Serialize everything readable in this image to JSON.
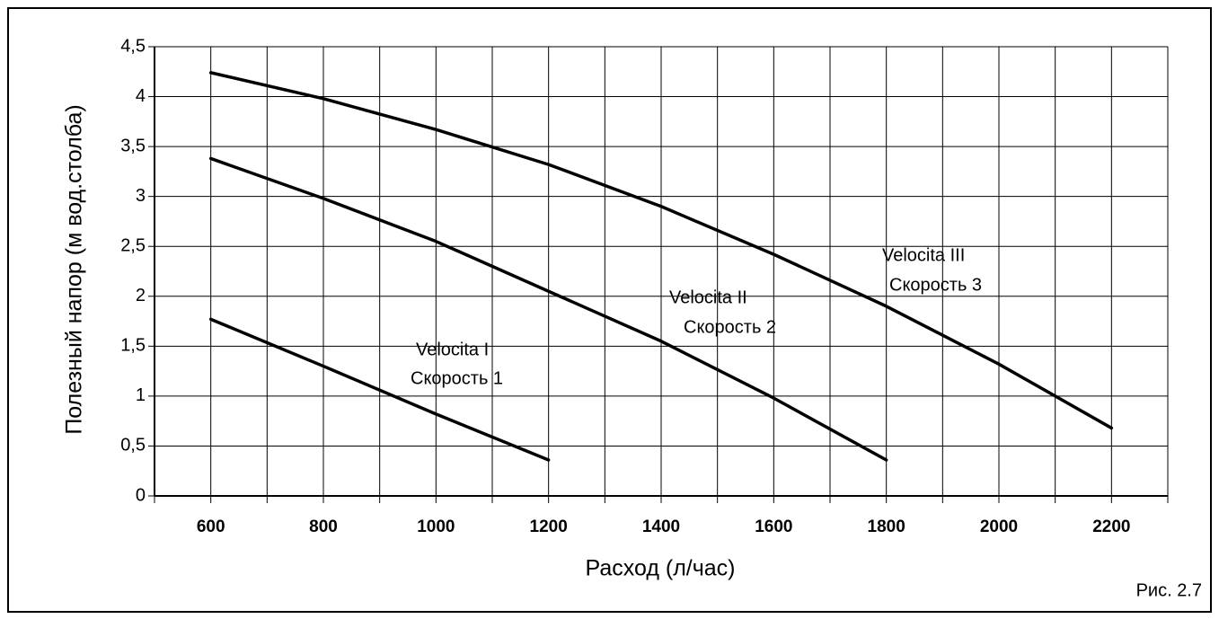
{
  "chart_data": {
    "type": "line",
    "xlabel": "Расход (л/час)",
    "ylabel": "Полезный напор (м вод.столба)",
    "caption": "Рис. 2.7",
    "xlim": [
      500,
      2300
    ],
    "xticks": [
      600,
      800,
      1000,
      1200,
      1400,
      1600,
      1800,
      2000,
      2200
    ],
    "xgrid": [
      500,
      600,
      700,
      800,
      900,
      1000,
      1100,
      1200,
      1300,
      1400,
      1500,
      1600,
      1700,
      1800,
      1900,
      2000,
      2100,
      2200,
      2300
    ],
    "ylim": [
      0,
      4.5
    ],
    "yticks": [
      0,
      {
        "value": 0.5,
        "label": "0,5"
      },
      1,
      {
        "value": 1.5,
        "label": "1,5"
      },
      2,
      {
        "value": 2.5,
        "label": "2,5"
      },
      3,
      {
        "value": 3.5,
        "label": "3,5"
      },
      4,
      {
        "value": 4.5,
        "label": "4,5"
      }
    ],
    "grid": true,
    "series": [
      {
        "color": "#000000",
        "x": [
          600,
          800,
          1000,
          1200
        ],
        "values": [
          1.77,
          1.3,
          0.82,
          0.36
        ]
      },
      {
        "color": "#000000",
        "x": [
          600,
          800,
          1000,
          1200,
          1400,
          1600,
          1800
        ],
        "values": [
          3.38,
          2.98,
          2.55,
          2.05,
          1.55,
          0.98,
          0.36
        ]
      },
      {
        "color": "#000000",
        "x": [
          600,
          800,
          1000,
          1200,
          1400,
          1600,
          1800,
          2000,
          2200
        ],
        "values": [
          4.24,
          3.98,
          3.67,
          3.32,
          2.9,
          2.42,
          1.9,
          1.32,
          0.68
        ]
      }
    ],
    "annotations": [
      {
        "line1": "Velocita I",
        "line2": "Скорость 1"
      },
      {
        "line1": "Velocita II",
        "line2": "Скорость 2"
      },
      {
        "line1": "Velocita III",
        "line2": "Скорость 3"
      }
    ]
  }
}
